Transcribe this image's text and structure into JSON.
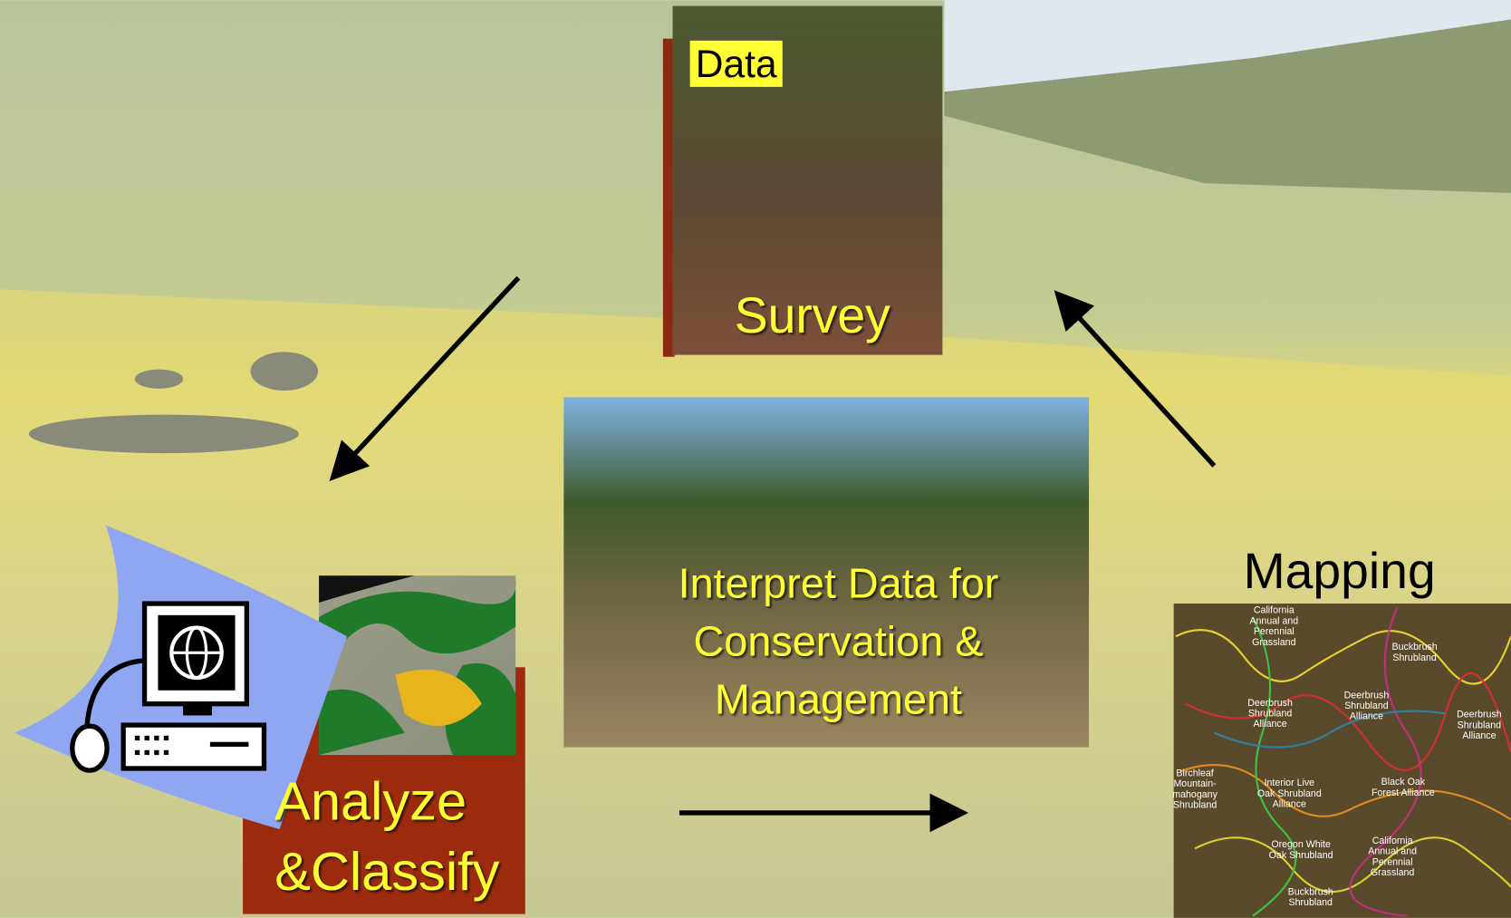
{
  "survey": {
    "tag": "Data",
    "title": "Survey"
  },
  "interpret": {
    "lines": [
      "Interpret Data for",
      "Conservation &",
      "Management"
    ]
  },
  "analyze": {
    "lines": [
      "Analyze",
      "&Classify"
    ]
  },
  "mapping": {
    "title": "Mapping",
    "labels": [
      [
        "California",
        "Annual and",
        "Perennial",
        "Grassland"
      ],
      [
        "Buckbrush",
        "Shrubland"
      ],
      [
        "Deerbrush",
        "Shrubland",
        "Alliance"
      ],
      [
        "Deerbrush",
        "Shrubland",
        "Alliance"
      ],
      [
        "Deerbrush",
        "Shrubland",
        "Alliance"
      ],
      [
        "Birchleaf",
        "Mountain-",
        "mahogany",
        "Shrubland"
      ],
      [
        "Interior Live",
        "Oak Shrubland",
        "Alliance"
      ],
      [
        "Black Oak",
        "Forest Alliance"
      ],
      [
        "Oregon White",
        "Oak Shrubland"
      ],
      [
        "California",
        "Annual and",
        "Perennial",
        "Grassland"
      ],
      [
        "Buckbrush",
        "Shrubland"
      ]
    ]
  }
}
